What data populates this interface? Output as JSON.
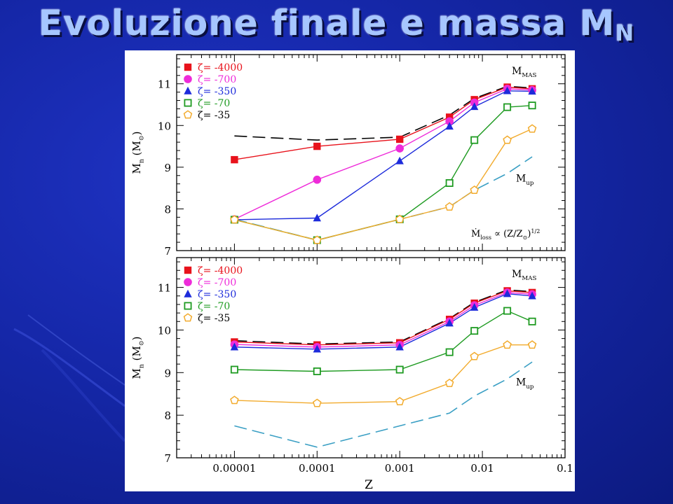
{
  "slide": {
    "title_main": "Evoluzione finale e massa M",
    "title_sub": "N"
  },
  "chart_data": [
    {
      "type": "line",
      "xscale": "log",
      "xlim": [
        2e-06,
        0.1
      ],
      "ylim": [
        7,
        11.7
      ],
      "xlabel": "",
      "ylabel": "M_n (M_⊙)",
      "x_ticks": [
        "0.00001",
        "0.0001",
        "0.001",
        "0.01",
        "0.1"
      ],
      "y_ticks": [
        7,
        8,
        9,
        10,
        11
      ],
      "legend_position": "top-left",
      "annotations": {
        "mmas": "M_MAS",
        "mup": "M_up",
        "mloss": "Ṁ_loss ∝ (Z/Z_⊙)^1/2"
      },
      "series": [
        {
          "name": "ζ= -4000",
          "color": "#e8121b",
          "marker": "square-filled",
          "x": [
            1e-05,
            0.0001,
            0.001,
            0.004,
            0.008,
            0.02,
            0.04
          ],
          "values": [
            9.18,
            9.5,
            9.67,
            10.2,
            10.62,
            10.92,
            10.88
          ]
        },
        {
          "name": "ζ= -700",
          "color": "#ee2bd9",
          "marker": "circle-filled",
          "x": [
            1e-05,
            0.0001,
            0.001,
            0.004,
            0.008,
            0.02,
            0.04
          ],
          "values": [
            7.75,
            8.7,
            9.45,
            10.1,
            10.55,
            10.88,
            10.85
          ]
        },
        {
          "name": "ζ= -350",
          "color": "#1d2bdb",
          "marker": "triangle-filled",
          "x": [
            1e-05,
            0.0001,
            0.001,
            0.004,
            0.008,
            0.02,
            0.04
          ],
          "values": [
            7.74,
            7.78,
            9.15,
            9.98,
            10.45,
            10.83,
            10.82
          ]
        },
        {
          "name": "ζ= -70",
          "color": "#1f9b22",
          "marker": "square-open",
          "x": [
            1e-05,
            0.0001,
            0.001,
            0.004,
            0.008,
            0.02,
            0.04
          ],
          "values": [
            7.74,
            7.25,
            7.75,
            8.62,
            9.65,
            10.44,
            10.48
          ]
        },
        {
          "name": "ζ= -35",
          "color": "#f2ab2d",
          "marker": "pentagon-open",
          "x": [
            1e-05,
            0.0001,
            0.001,
            0.004,
            0.008,
            0.02,
            0.04
          ],
          "values": [
            7.74,
            7.25,
            7.75,
            8.05,
            8.45,
            9.65,
            9.92
          ]
        }
      ],
      "dashed_lines": [
        {
          "label": "M_MAS",
          "color": "#000000",
          "x": [
            1e-05,
            0.0001,
            0.001,
            0.004,
            0.008,
            0.02,
            0.04
          ],
          "values": [
            9.75,
            9.65,
            9.72,
            10.25,
            10.65,
            10.94,
            10.9
          ]
        },
        {
          "label": "M_up",
          "color": "#3a9fc4",
          "x": [
            1e-05,
            0.0001,
            0.001,
            0.004,
            0.008,
            0.02,
            0.04
          ],
          "values": [
            7.75,
            7.25,
            7.75,
            8.05,
            8.45,
            8.85,
            9.25
          ]
        }
      ]
    },
    {
      "type": "line",
      "xscale": "log",
      "xlim": [
        2e-06,
        0.1
      ],
      "ylim": [
        7,
        11.7
      ],
      "xlabel": "Z",
      "ylabel": "M_n (M_⊙)",
      "x_ticks": [
        "0.00001",
        "0.0001",
        "0.001",
        "0.01",
        "0.1"
      ],
      "y_ticks": [
        7,
        8,
        9,
        10,
        11
      ],
      "legend_position": "top-left",
      "annotations": {
        "mmas": "M_MAS",
        "mup": "M_up"
      },
      "series": [
        {
          "name": "ζ= -4000",
          "color": "#e8121b",
          "marker": "square-filled",
          "x": [
            1e-05,
            0.0001,
            0.001,
            0.004,
            0.008,
            0.02,
            0.04
          ],
          "values": [
            9.72,
            9.65,
            9.7,
            10.25,
            10.63,
            10.92,
            10.88
          ]
        },
        {
          "name": "ζ= -700",
          "color": "#ee2bd9",
          "marker": "circle-filled",
          "x": [
            1e-05,
            0.0001,
            0.001,
            0.004,
            0.008,
            0.02,
            0.04
          ],
          "values": [
            9.66,
            9.6,
            9.65,
            10.2,
            10.58,
            10.88,
            10.84
          ]
        },
        {
          "name": "ζ= -350",
          "color": "#1d2bdb",
          "marker": "triangle-filled",
          "x": [
            1e-05,
            0.0001,
            0.001,
            0.004,
            0.008,
            0.02,
            0.04
          ],
          "values": [
            9.6,
            9.55,
            9.6,
            10.16,
            10.53,
            10.85,
            10.8
          ]
        },
        {
          "name": "ζ= -70",
          "color": "#1f9b22",
          "marker": "square-open",
          "x": [
            1e-05,
            0.0001,
            0.001,
            0.004,
            0.008,
            0.02,
            0.04
          ],
          "values": [
            9.07,
            9.03,
            9.07,
            9.48,
            9.98,
            10.45,
            10.2
          ]
        },
        {
          "name": "ζ= -35",
          "color": "#f2ab2d",
          "marker": "pentagon-open",
          "x": [
            1e-05,
            0.0001,
            0.001,
            0.004,
            0.008,
            0.02,
            0.04
          ],
          "values": [
            8.35,
            8.28,
            8.32,
            8.75,
            9.38,
            9.65,
            9.65
          ]
        }
      ],
      "dashed_lines": [
        {
          "label": "M_MAS",
          "color": "#000000",
          "x": [
            1e-05,
            0.0001,
            0.001,
            0.004,
            0.008,
            0.02,
            0.04
          ],
          "values": [
            9.75,
            9.67,
            9.72,
            10.27,
            10.65,
            10.94,
            10.9
          ]
        },
        {
          "label": "M_up",
          "color": "#3a9fc4",
          "x": [
            1e-05,
            0.0001,
            0.001,
            0.004,
            0.008,
            0.02,
            0.04
          ],
          "values": [
            7.75,
            7.25,
            7.75,
            8.05,
            8.45,
            8.85,
            9.25
          ]
        }
      ]
    }
  ]
}
